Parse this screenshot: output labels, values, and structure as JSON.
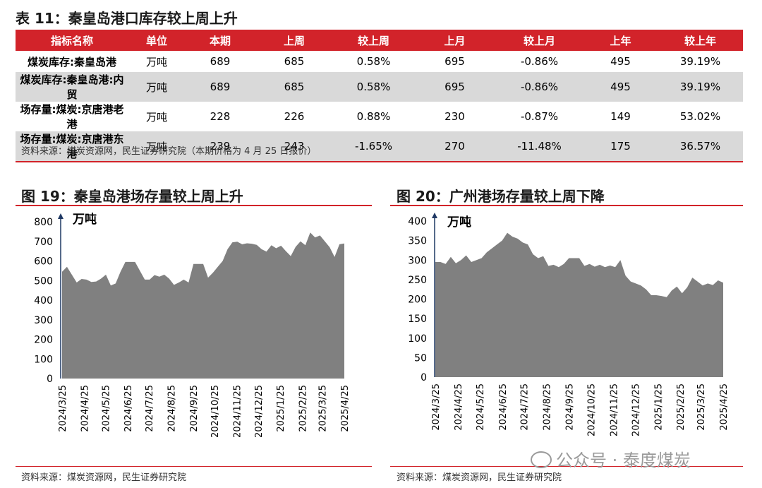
{
  "table": {
    "title": "表 11：秦皇岛港口库存较上周上升",
    "headers": [
      "指标名称",
      "单位",
      "本期",
      "上周",
      "较上周",
      "上月",
      "较上月",
      "上年",
      "较上年"
    ],
    "rows": [
      [
        "煤炭库存:秦皇岛港",
        "万吨",
        "689",
        "685",
        "0.58%",
        "695",
        "-0.86%",
        "495",
        "39.19%"
      ],
      [
        "煤炭库存:秦皇岛港:内贸",
        "万吨",
        "689",
        "685",
        "0.58%",
        "695",
        "-0.86%",
        "495",
        "39.19%"
      ],
      [
        "场存量:煤炭:京唐港老港",
        "万吨",
        "228",
        "226",
        "0.88%",
        "230",
        "-0.87%",
        "149",
        "53.02%"
      ],
      [
        "场存量:煤炭:京唐港东港",
        "万吨",
        "239",
        "243",
        "-1.65%",
        "270",
        "-11.48%",
        "175",
        "36.57%"
      ]
    ],
    "source": "资料来源：煤炭资源网，民生证券研究院（本期价格为 4 月 25 日报价）"
  },
  "watermark": "公众号 · 泰度煤炭",
  "chart_data": [
    {
      "type": "area",
      "title": "图 19：秦皇岛港场存量较上周上升",
      "ylabel": "万吨",
      "ylim": [
        0,
        800
      ],
      "yticks": [
        0,
        100,
        200,
        300,
        400,
        500,
        600,
        700,
        800
      ],
      "xticks": [
        "2024/3/25",
        "2024/4/25",
        "2024/5/25",
        "2024/6/25",
        "2024/7/25",
        "2024/8/25",
        "2024/9/25",
        "2024/10/25",
        "2024/11/25",
        "2024/12/25",
        "2025/1/25",
        "2025/2/25",
        "2025/3/25",
        "2025/4/25"
      ],
      "x_start": "2024/3/25",
      "x_end": "2025/4/25",
      "values": [
        545,
        570,
        530,
        490,
        508,
        505,
        493,
        495,
        510,
        530,
        475,
        485,
        545,
        595,
        595,
        595,
        550,
        505,
        505,
        528,
        520,
        530,
        510,
        478,
        490,
        505,
        490,
        585,
        585,
        585,
        515,
        540,
        570,
        600,
        660,
        695,
        698,
        685,
        690,
        688,
        682,
        660,
        648,
        680,
        665,
        678,
        650,
        625,
        672,
        700,
        680,
        745,
        720,
        730,
        700,
        670,
        620,
        685,
        689
      ],
      "color": "#808080",
      "source": "资料来源：煤炭资源网，民生证券研究院"
    },
    {
      "type": "area",
      "title": "图 20：广州港场存量较上周下降",
      "ylabel": "万吨",
      "ylim": [
        0,
        400
      ],
      "yticks": [
        0,
        50,
        100,
        150,
        200,
        250,
        300,
        350,
        400
      ],
      "xticks": [
        "2024/3/25",
        "2024/4/25",
        "2024/5/25",
        "2024/6/25",
        "2024/7/25",
        "2024/8/25",
        "2024/9/25",
        "2024/10/25",
        "2024/11/25",
        "2024/12/25",
        "2025/1/25",
        "2025/2/25",
        "2025/3/25",
        "2025/4/25"
      ],
      "x_start": "2024/3/25",
      "x_end": "2025/4/25",
      "values": [
        295,
        295,
        290,
        308,
        292,
        300,
        312,
        295,
        300,
        305,
        320,
        330,
        340,
        350,
        370,
        360,
        355,
        345,
        340,
        315,
        305,
        310,
        285,
        288,
        282,
        290,
        305,
        305,
        305,
        285,
        290,
        283,
        288,
        282,
        286,
        282,
        300,
        260,
        245,
        240,
        235,
        225,
        210,
        210,
        208,
        205,
        222,
        232,
        215,
        230,
        255,
        245,
        235,
        240,
        236,
        248,
        242
      ],
      "color": "#808080",
      "source": "资料来源：煤炭资源网，民生证券研究院"
    }
  ]
}
